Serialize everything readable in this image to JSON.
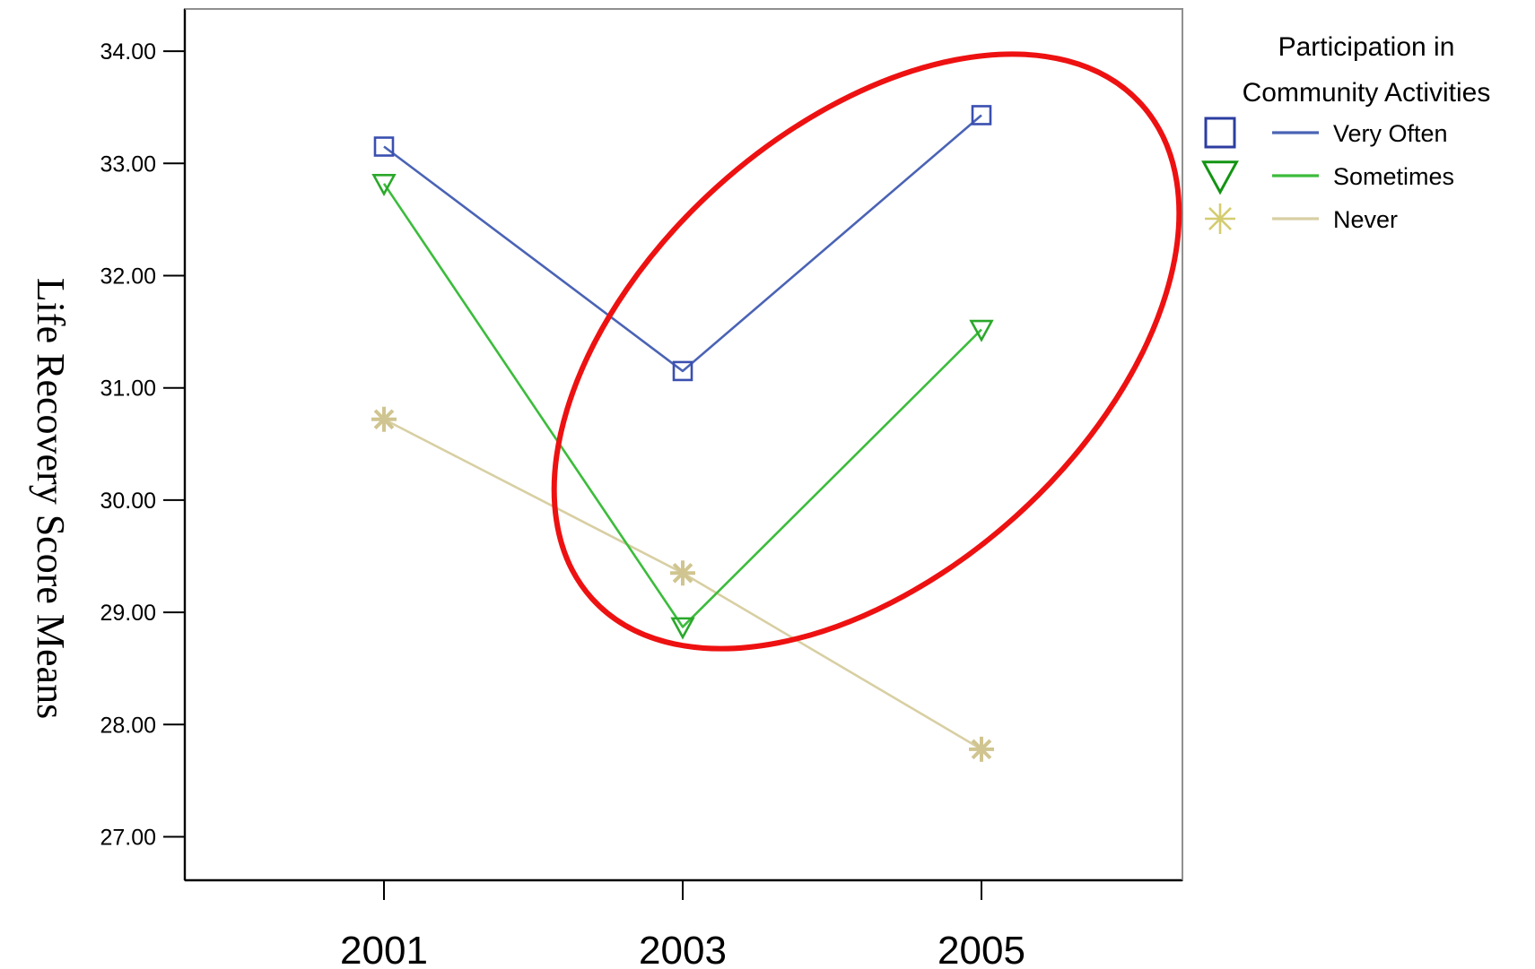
{
  "chart_data": {
    "type": "line",
    "title": "",
    "xlabel": "",
    "ylabel": "Life Recovery Score Means",
    "categories": [
      "2001",
      "2003",
      "2005"
    ],
    "ylim": [
      26.6,
      34.4
    ],
    "yticks": [
      "27.00",
      "28.00",
      "29.00",
      "30.00",
      "31.00",
      "32.00",
      "33.00",
      "34.00"
    ],
    "grid": false,
    "legend": {
      "title_line1": "Participation in",
      "title_line2": "Community Activities",
      "placement": "right, outside plot area"
    },
    "series": [
      {
        "name": "Very Often",
        "values": [
          33.15,
          31.15,
          33.43
        ],
        "color": "#4a63b5",
        "marker": "square",
        "markerColor": "#3a4fb0",
        "legendMarkerColor": "#2c3da0"
      },
      {
        "name": "Sometimes",
        "values": [
          32.82,
          28.87,
          31.52
        ],
        "color": "#3cbc3c",
        "marker": "triangle-down",
        "markerColor": "#2aa82a",
        "legendMarkerColor": "#139413"
      },
      {
        "name": "Never",
        "values": [
          30.72,
          29.35,
          27.78
        ],
        "color": "#d8cfa3",
        "marker": "asterisk",
        "markerColor": "#d0c590",
        "legendMarkerColor": "#d4cc70"
      }
    ],
    "annotation": {
      "shape": "ellipse",
      "color": "#ee1111",
      "highlights": "2003 to 2005 changes"
    }
  }
}
